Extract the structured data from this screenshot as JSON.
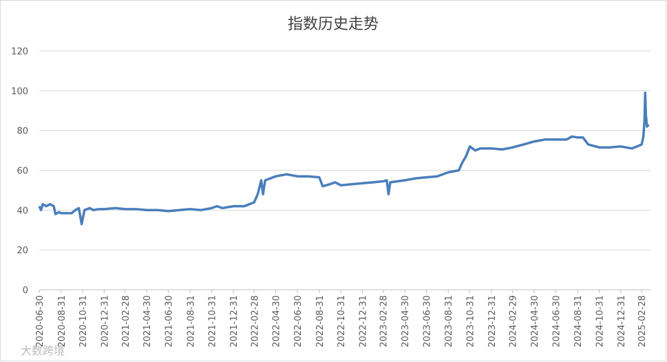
{
  "chart_data": {
    "type": "line",
    "title": "指数历史走势",
    "watermark": "大数跨境",
    "x": [
      "2020-06-30",
      "2020-07-05",
      "2020-07-10",
      "2020-07-20",
      "2020-07-31",
      "2020-08-10",
      "2020-08-15",
      "2020-08-25",
      "2020-08-31",
      "2020-09-15",
      "2020-09-30",
      "2020-10-10",
      "2020-10-20",
      "2020-10-25",
      "2020-10-28",
      "2020-11-05",
      "2020-11-20",
      "2020-11-30",
      "2020-12-15",
      "2020-12-31",
      "2021-01-31",
      "2021-02-28",
      "2021-03-31",
      "2021-04-30",
      "2021-05-31",
      "2021-06-30",
      "2021-07-31",
      "2021-08-31",
      "2021-09-30",
      "2021-10-31",
      "2021-11-15",
      "2021-11-30",
      "2021-12-31",
      "2022-01-31",
      "2022-02-15",
      "2022-02-28",
      "2022-03-10",
      "2022-03-20",
      "2022-03-25",
      "2022-03-31",
      "2022-04-15",
      "2022-04-30",
      "2022-05-31",
      "2022-06-30",
      "2022-07-31",
      "2022-08-31",
      "2022-09-10",
      "2022-09-30",
      "2022-10-15",
      "2022-10-31",
      "2022-11-30",
      "2022-12-31",
      "2023-01-31",
      "2023-02-28",
      "2023-03-10",
      "2023-03-15",
      "2023-03-20",
      "2023-04-30",
      "2023-05-31",
      "2023-06-30",
      "2023-07-31",
      "2023-08-31",
      "2023-09-30",
      "2023-10-10",
      "2023-10-20",
      "2023-10-31",
      "2023-11-15",
      "2023-11-30",
      "2023-12-31",
      "2024-01-31",
      "2024-02-29",
      "2024-03-31",
      "2024-04-30",
      "2024-05-31",
      "2024-06-30",
      "2024-07-31",
      "2024-08-15",
      "2024-08-31",
      "2024-09-15",
      "2024-09-30",
      "2024-10-31",
      "2024-11-30",
      "2024-12-31",
      "2025-01-31",
      "2025-02-15",
      "2025-02-28",
      "2025-03-05",
      "2025-03-08",
      "2025-03-10",
      "2025-03-12",
      "2025-03-15",
      "2025-03-20"
    ],
    "series": [
      {
        "name": "指数",
        "color": "#4a7ebb",
        "values": [
          42,
          40,
          43,
          42,
          43,
          42,
          38,
          39,
          38.5,
          38.5,
          38.5,
          40,
          41,
          36,
          33,
          40,
          41,
          40,
          40.5,
          40.5,
          41,
          40.5,
          40.5,
          40,
          40,
          39.5,
          40,
          40.5,
          40,
          41,
          42,
          41,
          42,
          42,
          43,
          44,
          48,
          55,
          48,
          55,
          56,
          57,
          58,
          57,
          57,
          56.5,
          52,
          53,
          54,
          52.5,
          53,
          53.5,
          54,
          54.5,
          55,
          48,
          54,
          55,
          56,
          56.5,
          57,
          59,
          60,
          64,
          67,
          72,
          70,
          71,
          71,
          70.5,
          71.5,
          73,
          74.5,
          75.5,
          75.5,
          75.5,
          77,
          76.5,
          76.5,
          73,
          71.5,
          71.5,
          72,
          71,
          72,
          73,
          77,
          85,
          99,
          88,
          82,
          83
        ]
      }
    ],
    "xlim": [
      "2020-06-30",
      "2025-03-25"
    ],
    "xticks": [
      "2020-06-30",
      "2020-08-31",
      "2020-10-31",
      "2020-12-31",
      "2021-02-28",
      "2021-04-30",
      "2021-06-30",
      "2021-08-31",
      "2021-10-31",
      "2021-12-31",
      "2022-02-28",
      "2022-04-30",
      "2022-06-30",
      "2022-08-31",
      "2022-10-31",
      "2022-12-31",
      "2023-02-28",
      "2023-04-30",
      "2023-06-30",
      "2023-08-31",
      "2023-10-31",
      "2023-12-31",
      "2024-02-29",
      "2024-04-30",
      "2024-06-30",
      "2024-08-31",
      "2024-10-31",
      "2024-12-31",
      "2025-02-28"
    ],
    "ylim": [
      0,
      120
    ],
    "yticks": [
      0,
      20,
      40,
      60,
      80,
      100,
      120
    ],
    "grid": true
  }
}
